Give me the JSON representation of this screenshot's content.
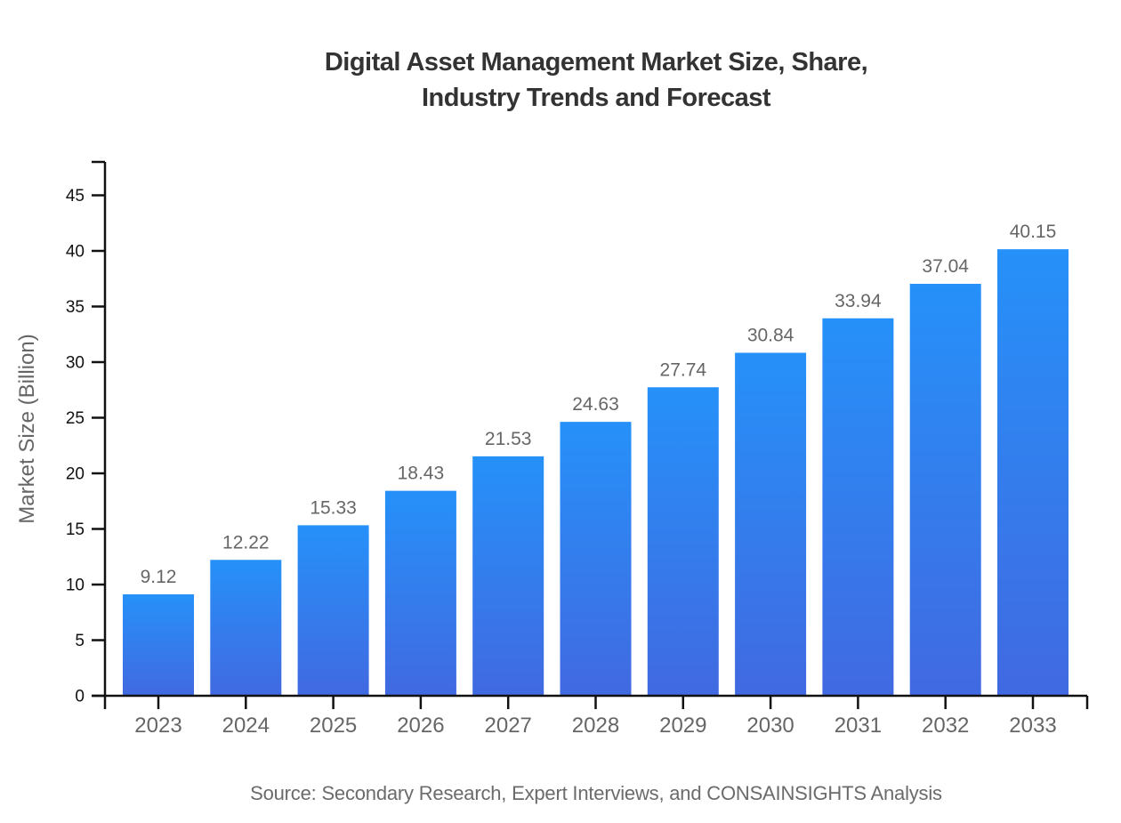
{
  "chart_data": {
    "type": "bar",
    "title_line1": "Digital Asset Management Market Size, Share,",
    "title_line2": "Industry Trends and Forecast",
    "categories": [
      "2023",
      "2024",
      "2025",
      "2026",
      "2027",
      "2028",
      "2029",
      "2030",
      "2031",
      "2032",
      "2033"
    ],
    "values": [
      9.12,
      12.22,
      15.33,
      18.43,
      21.53,
      24.63,
      27.74,
      30.84,
      33.94,
      37.04,
      40.15
    ],
    "ylabel": "Market Size (Billion)",
    "xlabel": "",
    "source": "Source: Secondary Research, Expert Interviews, and CONSAINSIGHTS Analysis",
    "ylim": [
      0,
      48
    ],
    "yticks": [
      0,
      5,
      10,
      15,
      20,
      25,
      30,
      35,
      40,
      45
    ],
    "grid": false,
    "legend": "none",
    "value_label_decimals": 2,
    "colors": {
      "bar_gradient_top": "#2691F9",
      "bar_gradient_bottom": "#4169E1",
      "axis": "#111111",
      "y_tick_label": "#111111",
      "category_label": "#666666",
      "value_label": "#666666",
      "title": "#333333",
      "muted_text": "#6B6B6B"
    }
  }
}
